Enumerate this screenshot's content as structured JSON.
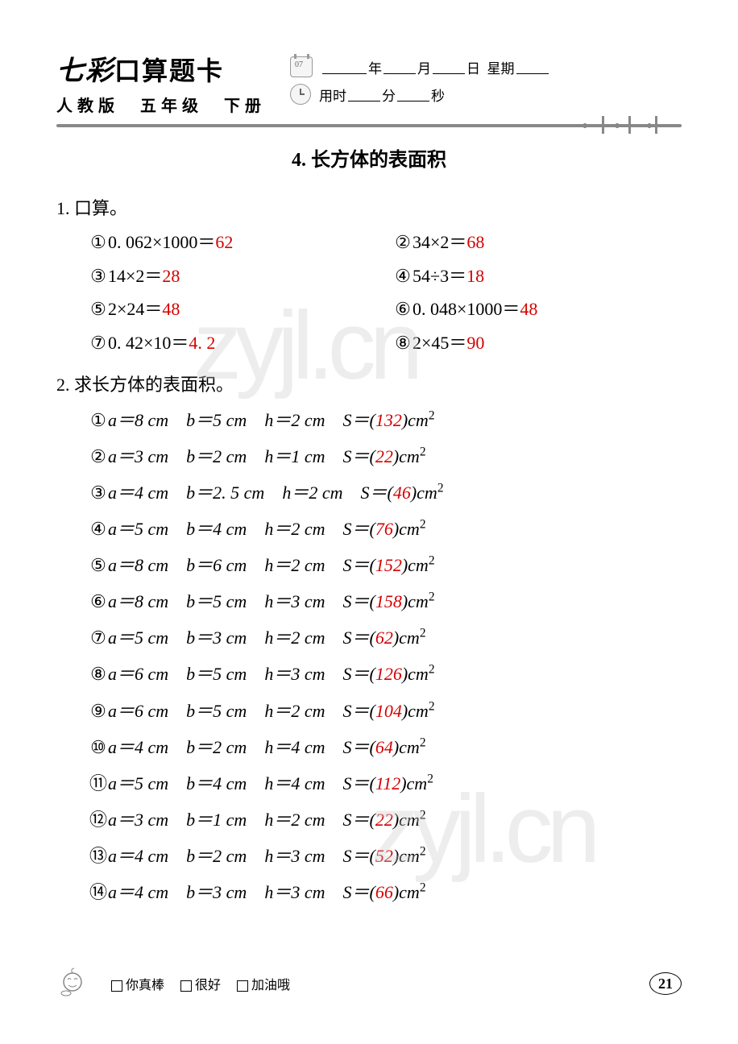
{
  "header": {
    "brand_prefix": "七彩",
    "brand_suffix": "口算题卡",
    "subtitle": "人教版　五年级　下册",
    "date_labels": {
      "year": "年",
      "month": "月",
      "day": "日",
      "weekday": "星期",
      "time_prefix": "用时",
      "minute": "分",
      "second": "秒"
    }
  },
  "section": {
    "title": "4. 长方体的表面积"
  },
  "q1": {
    "label": "1. 口算。",
    "items": [
      {
        "n": "①",
        "expr": "0. 062×1000＝",
        "ans": "62"
      },
      {
        "n": "②",
        "expr": "34×2＝",
        "ans": "68"
      },
      {
        "n": "③",
        "expr": "14×2＝",
        "ans": "28"
      },
      {
        "n": "④",
        "expr": "54÷3＝",
        "ans": "18"
      },
      {
        "n": "⑤",
        "expr": "2×24＝",
        "ans": "48"
      },
      {
        "n": "⑥",
        "expr": "0. 048×1000＝",
        "ans": "48"
      },
      {
        "n": "⑦",
        "expr": "0. 42×10＝",
        "ans": "4. 2"
      },
      {
        "n": "⑧",
        "expr": "2×45＝",
        "ans": "90"
      }
    ]
  },
  "q2": {
    "label": "2. 求长方体的表面积。",
    "rows": [
      {
        "n": "①",
        "a": "8",
        "b": "5",
        "h": "2",
        "s": "132"
      },
      {
        "n": "②",
        "a": "3",
        "b": "2",
        "h": "1",
        "s": "22"
      },
      {
        "n": "③",
        "a": "4",
        "b": "2. 5",
        "h": "2",
        "s": "46"
      },
      {
        "n": "④",
        "a": "5",
        "b": "4",
        "h": "2",
        "s": "76"
      },
      {
        "n": "⑤",
        "a": "8",
        "b": "6",
        "h": "2",
        "s": "152"
      },
      {
        "n": "⑥",
        "a": "8",
        "b": "5",
        "h": "3",
        "s": "158"
      },
      {
        "n": "⑦",
        "a": "5",
        "b": "3",
        "h": "2",
        "s": "62"
      },
      {
        "n": "⑧",
        "a": "6",
        "b": "5",
        "h": "3",
        "s": "126"
      },
      {
        "n": "⑨",
        "a": "6",
        "b": "5",
        "h": "2",
        "s": "104"
      },
      {
        "n": "⑩",
        "a": "4",
        "b": "2",
        "h": "4",
        "s": "64"
      },
      {
        "n": "⑪",
        "a": "5",
        "b": "4",
        "h": "4",
        "s": "112"
      },
      {
        "n": "⑫",
        "a": "3",
        "b": "1",
        "h": "2",
        "s": "22"
      },
      {
        "n": "⑬",
        "a": "4",
        "b": "2",
        "h": "3",
        "s": "52"
      },
      {
        "n": "⑭",
        "a": "4",
        "b": "3",
        "h": "3",
        "s": "66"
      }
    ],
    "unit": "cm",
    "unit2": "cm²",
    "eq": "＝"
  },
  "footer": {
    "checks": [
      "你真棒",
      "很好",
      "加油哦"
    ],
    "page": "21"
  },
  "watermark": "zyjl.cn",
  "colors": {
    "answer": "#d40000",
    "text": "#000000",
    "divider": "#888888",
    "watermark": "#cccccc"
  }
}
